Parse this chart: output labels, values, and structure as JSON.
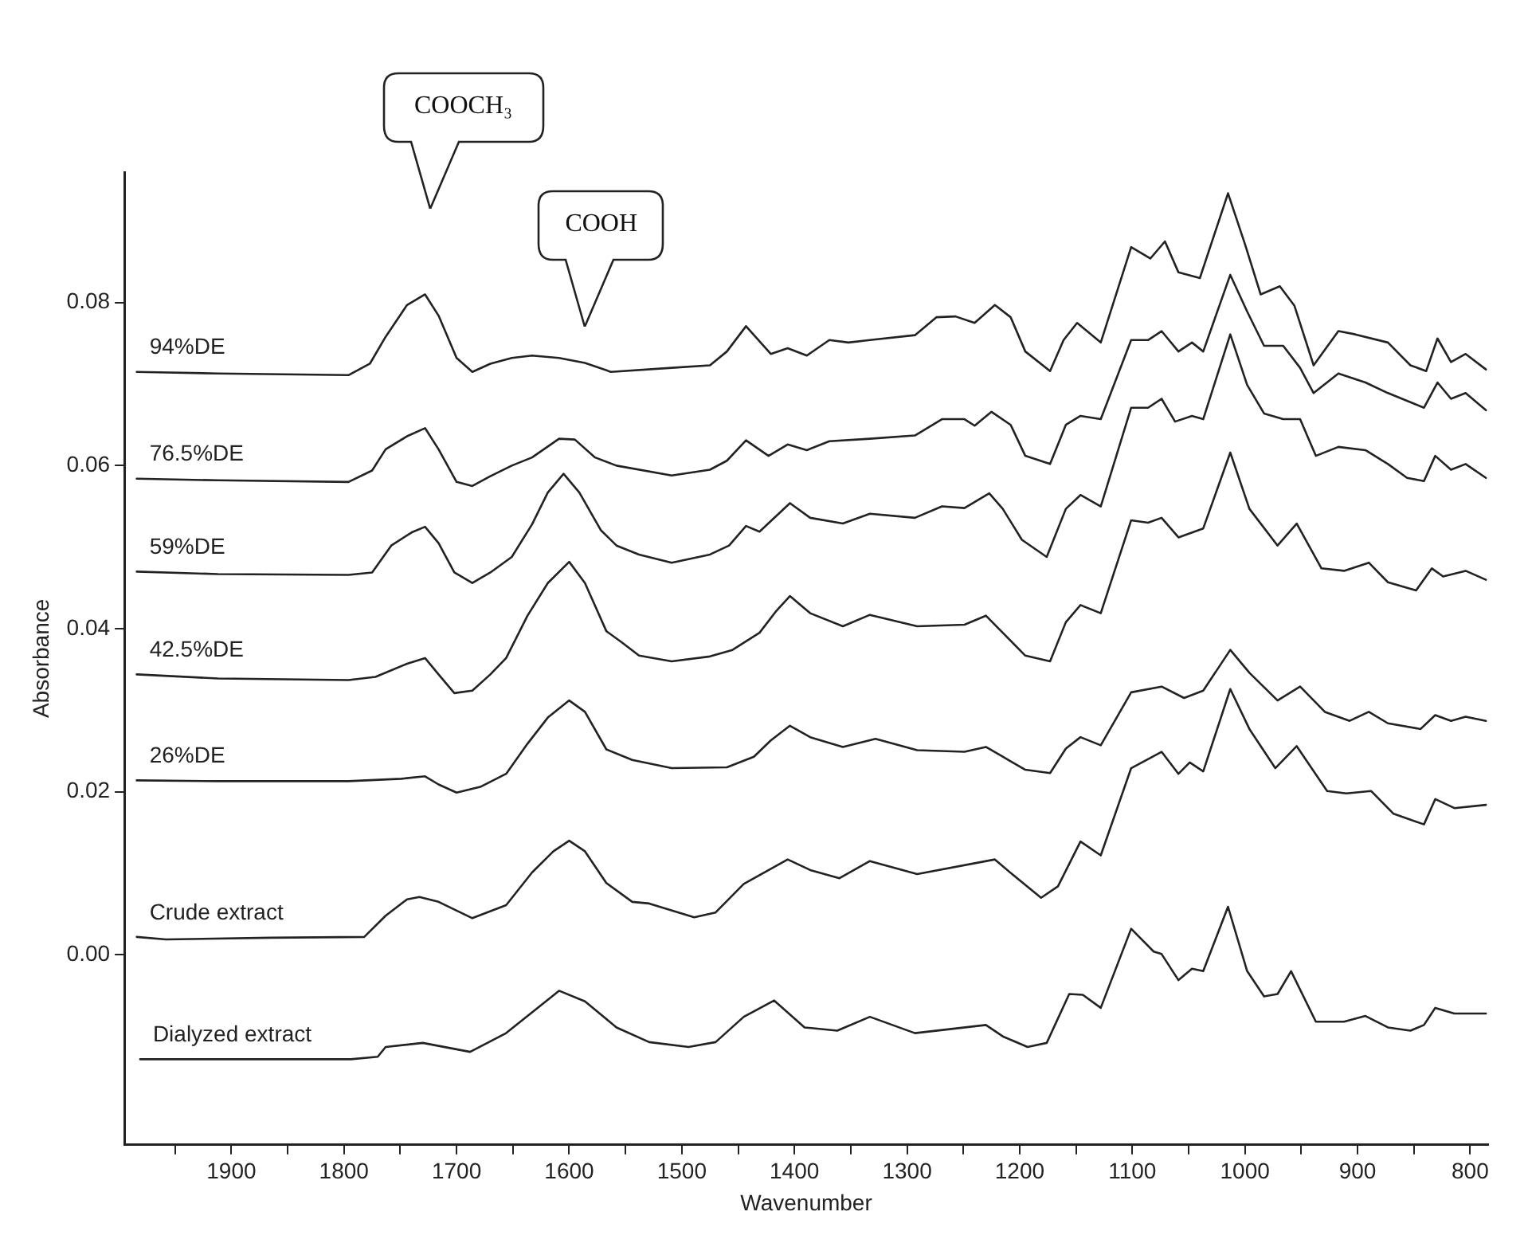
{
  "chart_data": {
    "type": "line",
    "xlabel": "Wavenumber",
    "ylabel": "Absorbance",
    "xlim": [
      1995,
      784
    ],
    "ylim": [
      -0.0233,
      0.096
    ],
    "xticks": [
      {
        "value": 1950,
        "label": null
      },
      1900,
      {
        "value": 1850,
        "label": null
      },
      1800,
      {
        "value": 1750,
        "label": null
      },
      1700,
      {
        "value": 1650,
        "label": null
      },
      1600,
      {
        "value": 1550,
        "label": null
      },
      1500,
      {
        "value": 1450,
        "label": null
      },
      1400,
      {
        "value": 1350,
        "label": null
      },
      1300,
      {
        "value": 1250,
        "label": null
      },
      1200,
      {
        "value": 1150,
        "label": null
      },
      1100,
      {
        "value": 1050,
        "label": null
      },
      1000,
      {
        "value": 950,
        "label": null
      },
      900,
      {
        "value": 850,
        "label": null
      },
      800
    ],
    "yticks": [
      {
        "value": 0,
        "label": "0.00"
      },
      {
        "value": 0.02,
        "label": "0.02"
      },
      {
        "value": 0.04,
        "label": "0.04"
      },
      {
        "value": 0.06,
        "label": "0.06"
      },
      {
        "value": 0.08,
        "label": "0.08"
      }
    ],
    "annotations": [
      "COOCH₃",
      "COOH"
    ],
    "series": [
      {
        "name": "94%DE",
        "color": "#222222",
        "x": [
          1984,
          1912,
          1796,
          1777,
          1763,
          1744,
          1728,
          1716,
          1700,
          1686,
          1670,
          1651,
          1633,
          1609,
          1586,
          1563,
          1509,
          1475,
          1460,
          1443,
          1421,
          1406,
          1389,
          1369,
          1352,
          1333,
          1293,
          1274,
          1257,
          1240,
          1222,
          1208,
          1195,
          1173,
          1161,
          1149,
          1128,
          1101,
          1084,
          1071,
          1059,
          1040,
          1015,
          1000,
          986,
          969,
          956,
          939,
          917,
          902,
          873,
          853,
          839,
          829,
          817,
          804,
          786
        ],
        "values": [
          0.0715,
          0.0713,
          0.0711,
          0.0725,
          0.0758,
          0.0797,
          0.081,
          0.0784,
          0.0732,
          0.0715,
          0.0725,
          0.0732,
          0.0735,
          0.0732,
          0.0726,
          0.0715,
          0.072,
          0.0723,
          0.074,
          0.0771,
          0.0737,
          0.0744,
          0.0735,
          0.0754,
          0.0751,
          0.0754,
          0.076,
          0.0782,
          0.0783,
          0.0775,
          0.0797,
          0.0782,
          0.074,
          0.0716,
          0.0754,
          0.0775,
          0.0751,
          0.0868,
          0.0854,
          0.0875,
          0.0837,
          0.083,
          0.0934,
          0.0872,
          0.081,
          0.082,
          0.0796,
          0.0723,
          0.0765,
          0.0761,
          0.0751,
          0.0723,
          0.0716,
          0.0756,
          0.0727,
          0.0737,
          0.0718
        ]
      },
      {
        "name": "76.5%DE",
        "color": "#222222",
        "x": [
          1984,
          1912,
          1796,
          1775,
          1763,
          1744,
          1728,
          1716,
          1700,
          1686,
          1670,
          1651,
          1633,
          1609,
          1595,
          1577,
          1558,
          1509,
          1475,
          1460,
          1443,
          1423,
          1406,
          1389,
          1369,
          1333,
          1293,
          1269,
          1249,
          1240,
          1225,
          1208,
          1195,
          1173,
          1159,
          1146,
          1128,
          1101,
          1086,
          1074,
          1059,
          1047,
          1037,
          1013,
          998,
          983,
          966,
          951,
          939,
          917,
          893,
          873,
          841,
          829,
          817,
          804,
          786
        ],
        "values": [
          0.0584,
          0.0582,
          0.058,
          0.0594,
          0.062,
          0.0636,
          0.0646,
          0.062,
          0.058,
          0.0575,
          0.0587,
          0.06,
          0.061,
          0.0633,
          0.0632,
          0.061,
          0.06,
          0.0588,
          0.0595,
          0.0606,
          0.0631,
          0.0612,
          0.0626,
          0.0619,
          0.063,
          0.0633,
          0.0637,
          0.0657,
          0.0657,
          0.0649,
          0.0666,
          0.065,
          0.0612,
          0.0602,
          0.065,
          0.0661,
          0.0657,
          0.0754,
          0.0754,
          0.0765,
          0.074,
          0.0751,
          0.074,
          0.0834,
          0.0789,
          0.0747,
          0.0747,
          0.072,
          0.0689,
          0.0713,
          0.0702,
          0.0689,
          0.0671,
          0.0702,
          0.0682,
          0.0689,
          0.0668
        ]
      },
      {
        "name": "59%DE",
        "color": "#222222",
        "x": [
          1984,
          1912,
          1796,
          1775,
          1758,
          1740,
          1728,
          1716,
          1702,
          1686,
          1670,
          1651,
          1633,
          1619,
          1605,
          1591,
          1572,
          1558,
          1538,
          1509,
          1475,
          1458,
          1443,
          1431,
          1404,
          1386,
          1357,
          1333,
          1293,
          1269,
          1249,
          1227,
          1215,
          1198,
          1176,
          1159,
          1146,
          1128,
          1101,
          1086,
          1074,
          1062,
          1047,
          1037,
          1013,
          998,
          983,
          966,
          951,
          937,
          917,
          893,
          873,
          856,
          841,
          831,
          817,
          804,
          786
        ],
        "values": [
          0.047,
          0.0467,
          0.0466,
          0.0469,
          0.0502,
          0.0518,
          0.0525,
          0.0505,
          0.0469,
          0.0456,
          0.0469,
          0.0488,
          0.0528,
          0.0567,
          0.059,
          0.0567,
          0.0521,
          0.0502,
          0.0491,
          0.0481,
          0.0491,
          0.0502,
          0.0526,
          0.0519,
          0.0554,
          0.0536,
          0.0529,
          0.0541,
          0.0536,
          0.055,
          0.0548,
          0.0566,
          0.0547,
          0.0509,
          0.0488,
          0.0547,
          0.0564,
          0.055,
          0.0671,
          0.0671,
          0.0682,
          0.0654,
          0.0661,
          0.0657,
          0.0761,
          0.0699,
          0.0664,
          0.0657,
          0.0657,
          0.0612,
          0.0623,
          0.0619,
          0.0602,
          0.0585,
          0.0581,
          0.0612,
          0.0595,
          0.0602,
          0.0585
        ]
      },
      {
        "name": "42.5%DE",
        "color": "#222222",
        "x": [
          1984,
          1912,
          1796,
          1772,
          1744,
          1728,
          1716,
          1702,
          1686,
          1670,
          1656,
          1637,
          1619,
          1600,
          1586,
          1567,
          1553,
          1538,
          1509,
          1475,
          1455,
          1431,
          1416,
          1404,
          1386,
          1357,
          1333,
          1291,
          1249,
          1230,
          1215,
          1195,
          1173,
          1159,
          1146,
          1128,
          1101,
          1086,
          1074,
          1059,
          1037,
          1013,
          996,
          971,
          954,
          932,
          912,
          890,
          873,
          848,
          834,
          824,
          804,
          786
        ],
        "values": [
          0.0344,
          0.0339,
          0.0337,
          0.0341,
          0.0357,
          0.0364,
          0.0344,
          0.0321,
          0.0324,
          0.0344,
          0.0364,
          0.0416,
          0.0456,
          0.0482,
          0.0456,
          0.0397,
          0.0383,
          0.0367,
          0.036,
          0.0366,
          0.0374,
          0.0395,
          0.0422,
          0.044,
          0.0419,
          0.0403,
          0.0417,
          0.0403,
          0.0405,
          0.0416,
          0.0395,
          0.0367,
          0.036,
          0.0408,
          0.0429,
          0.0419,
          0.0533,
          0.053,
          0.0536,
          0.0512,
          0.0523,
          0.0616,
          0.0547,
          0.0502,
          0.0529,
          0.0474,
          0.0471,
          0.0481,
          0.0457,
          0.0447,
          0.0474,
          0.0464,
          0.0471,
          0.046
        ]
      },
      {
        "name": "26%DE",
        "color": "#222222",
        "x": [
          1984,
          1912,
          1796,
          1749,
          1728,
          1716,
          1700,
          1679,
          1656,
          1637,
          1619,
          1600,
          1586,
          1567,
          1544,
          1509,
          1460,
          1436,
          1421,
          1404,
          1386,
          1357,
          1328,
          1291,
          1249,
          1230,
          1215,
          1195,
          1173,
          1159,
          1146,
          1128,
          1101,
          1074,
          1054,
          1037,
          1013,
          996,
          971,
          951,
          929,
          907,
          890,
          873,
          844,
          831,
          817,
          804,
          786
        ],
        "values": [
          0.0214,
          0.0213,
          0.0213,
          0.0216,
          0.0219,
          0.0209,
          0.0199,
          0.0206,
          0.0222,
          0.0259,
          0.0291,
          0.0312,
          0.0298,
          0.0252,
          0.0239,
          0.0229,
          0.023,
          0.0243,
          0.0263,
          0.0281,
          0.0267,
          0.0255,
          0.0265,
          0.0251,
          0.0249,
          0.0255,
          0.0243,
          0.0227,
          0.0223,
          0.0253,
          0.0267,
          0.0257,
          0.0322,
          0.0329,
          0.0315,
          0.0324,
          0.0374,
          0.0346,
          0.0312,
          0.0329,
          0.0298,
          0.0287,
          0.0298,
          0.0284,
          0.0277,
          0.0294,
          0.0287,
          0.0292,
          0.0287
        ]
      },
      {
        "name": "Crude extract",
        "color": "#222222",
        "x": [
          1984,
          1958,
          1865,
          1782,
          1763,
          1744,
          1733,
          1716,
          1686,
          1656,
          1633,
          1614,
          1600,
          1586,
          1567,
          1544,
          1529,
          1489,
          1470,
          1445,
          1406,
          1386,
          1360,
          1333,
          1291,
          1222,
          1205,
          1181,
          1166,
          1146,
          1128,
          1101,
          1074,
          1059,
          1049,
          1037,
          1013,
          996,
          973,
          954,
          927,
          910,
          888,
          868,
          841,
          831,
          814,
          786
        ],
        "values": [
          0.0022,
          0.0019,
          0.0021,
          0.0022,
          0.0048,
          0.0068,
          0.0071,
          0.0065,
          0.0045,
          0.0061,
          0.0101,
          0.0127,
          0.014,
          0.0127,
          0.0088,
          0.0065,
          0.0063,
          0.0046,
          0.0052,
          0.0087,
          0.0117,
          0.0104,
          0.0094,
          0.0115,
          0.0099,
          0.0117,
          0.0097,
          0.007,
          0.0084,
          0.0139,
          0.0122,
          0.0229,
          0.0249,
          0.0222,
          0.0236,
          0.0225,
          0.0326,
          0.0277,
          0.0229,
          0.0256,
          0.0201,
          0.0198,
          0.0201,
          0.0173,
          0.016,
          0.0191,
          0.018,
          0.0184
        ]
      },
      {
        "name": "Dialyzed extract",
        "color": "#222222",
        "x": [
          1981,
          1794,
          1770,
          1763,
          1730,
          1688,
          1656,
          1609,
          1586,
          1558,
          1529,
          1494,
          1470,
          1445,
          1418,
          1391,
          1362,
          1333,
          1293,
          1230,
          1215,
          1193,
          1176,
          1156,
          1144,
          1128,
          1101,
          1081,
          1074,
          1059,
          1047,
          1037,
          1015,
          998,
          983,
          971,
          959,
          937,
          912,
          893,
          873,
          853,
          841,
          831,
          814,
          786
        ],
        "values": [
          -0.0128,
          -0.0128,
          -0.0125,
          -0.0113,
          -0.0108,
          -0.0119,
          -0.0096,
          -0.0044,
          -0.0057,
          -0.0089,
          -0.0107,
          -0.0113,
          -0.0107,
          -0.0076,
          -0.0056,
          -0.0089,
          -0.0093,
          -0.0076,
          -0.0096,
          -0.0086,
          -0.01,
          -0.0113,
          -0.0108,
          -0.0048,
          -0.0049,
          -0.0065,
          0.0032,
          0.0004,
          0.0001,
          -0.0031,
          -0.0017,
          -0.002,
          0.0059,
          -0.002,
          -0.0051,
          -0.0048,
          -0.002,
          -0.0082,
          -0.0082,
          -0.0075,
          -0.0089,
          -0.0093,
          -0.0086,
          -0.0065,
          -0.0072,
          -0.0072
        ]
      }
    ]
  }
}
